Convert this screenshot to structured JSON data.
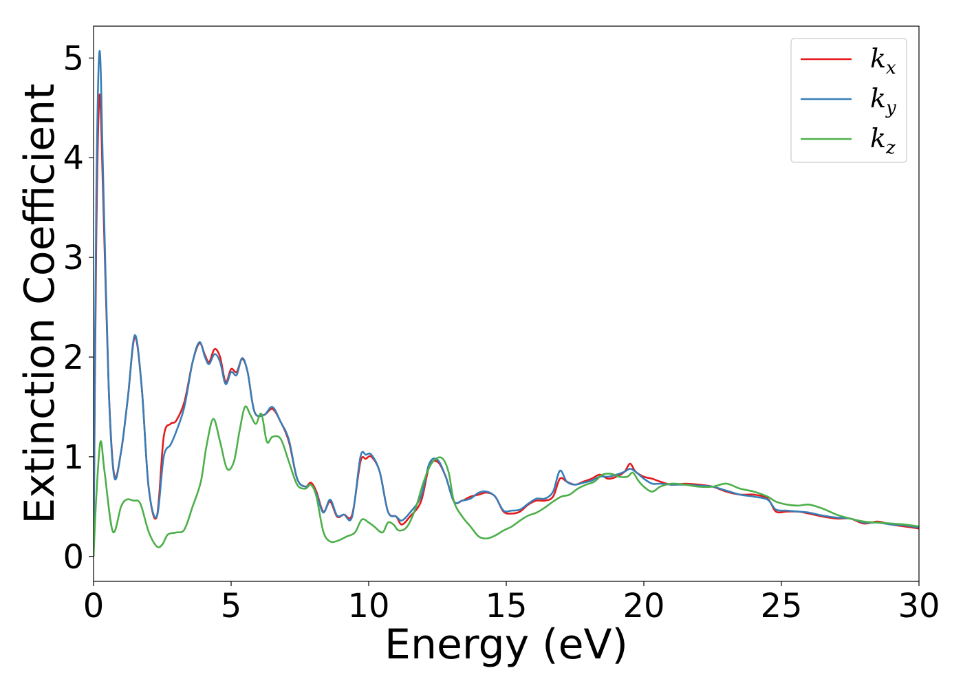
{
  "chart_data": {
    "type": "line",
    "xlabel": "Energy (eV)",
    "ylabel": "Extinction Coefficient",
    "xlim": [
      0,
      30
    ],
    "ylim": [
      -0.25,
      5.32
    ],
    "xticks": [
      "0",
      "5",
      "10",
      "15",
      "20",
      "25",
      "30"
    ],
    "yticks": [
      "0",
      "1",
      "2",
      "3",
      "4",
      "5"
    ],
    "grid": false,
    "legend_position": "top-right",
    "series": [
      {
        "name": "k",
        "subscript": "x",
        "color": "#e41a1c",
        "x": [
          0,
          0.1,
          0.22,
          0.35,
          0.55,
          0.75,
          1.0,
          1.25,
          1.5,
          1.75,
          2.0,
          2.3,
          2.55,
          2.8,
          3.0,
          3.3,
          3.6,
          3.85,
          4.05,
          4.2,
          4.4,
          4.6,
          4.8,
          5.0,
          5.2,
          5.4,
          5.6,
          5.85,
          6.2,
          6.5,
          6.8,
          7.1,
          7.4,
          7.7,
          7.9,
          8.1,
          8.35,
          8.6,
          8.85,
          9.1,
          9.4,
          9.7,
          9.9,
          10.1,
          10.4,
          10.7,
          11.0,
          11.2,
          11.5,
          11.9,
          12.2,
          12.5,
          12.8,
          13.1,
          13.4,
          13.7,
          14.0,
          14.3,
          14.6,
          14.9,
          15.2,
          15.5,
          15.8,
          16.1,
          16.4,
          16.7,
          16.95,
          17.2,
          17.5,
          17.8,
          18.1,
          18.4,
          18.7,
          19.0,
          19.3,
          19.5,
          19.7,
          20.0,
          20.3,
          20.6,
          21.0,
          21.5,
          22.0,
          22.5,
          23.0,
          23.5,
          24.0,
          24.5,
          24.8,
          25.2,
          25.6,
          26.0,
          26.5,
          27.0,
          27.5,
          28.0,
          28.5,
          29.0,
          29.5,
          30.0
        ],
        "y": [
          0.0,
          3.2,
          4.63,
          3.6,
          1.7,
          0.82,
          1.05,
          1.6,
          2.2,
          1.7,
          0.7,
          0.4,
          1.2,
          1.33,
          1.36,
          1.55,
          1.95,
          2.14,
          2.02,
          1.95,
          2.08,
          2.0,
          1.75,
          1.88,
          1.85,
          1.98,
          1.85,
          1.45,
          1.42,
          1.48,
          1.35,
          1.15,
          0.78,
          0.7,
          0.74,
          0.65,
          0.45,
          0.55,
          0.4,
          0.42,
          0.42,
          0.95,
          0.98,
          1.0,
          0.85,
          0.45,
          0.4,
          0.32,
          0.4,
          0.55,
          0.9,
          0.95,
          0.8,
          0.55,
          0.56,
          0.6,
          0.62,
          0.64,
          0.6,
          0.45,
          0.43,
          0.45,
          0.52,
          0.56,
          0.56,
          0.6,
          0.78,
          0.75,
          0.72,
          0.75,
          0.78,
          0.82,
          0.78,
          0.8,
          0.85,
          0.93,
          0.85,
          0.8,
          0.78,
          0.75,
          0.72,
          0.73,
          0.72,
          0.7,
          0.65,
          0.62,
          0.62,
          0.58,
          0.45,
          0.45,
          0.45,
          0.43,
          0.4,
          0.38,
          0.38,
          0.33,
          0.35,
          0.32,
          0.3,
          0.28
        ]
      },
      {
        "name": "k",
        "subscript": "y",
        "color": "#377eb8",
        "x": [
          0,
          0.1,
          0.22,
          0.35,
          0.55,
          0.75,
          1.0,
          1.25,
          1.5,
          1.75,
          2.0,
          2.3,
          2.55,
          2.8,
          3.0,
          3.3,
          3.6,
          3.85,
          4.05,
          4.2,
          4.4,
          4.6,
          4.8,
          5.0,
          5.2,
          5.4,
          5.6,
          5.85,
          6.2,
          6.5,
          6.8,
          7.1,
          7.4,
          7.7,
          7.9,
          8.1,
          8.35,
          8.6,
          8.85,
          9.1,
          9.4,
          9.7,
          9.9,
          10.1,
          10.4,
          10.7,
          11.0,
          11.2,
          11.5,
          11.9,
          12.2,
          12.5,
          12.8,
          13.1,
          13.4,
          13.7,
          14.0,
          14.3,
          14.6,
          14.9,
          15.2,
          15.5,
          15.8,
          16.1,
          16.4,
          16.7,
          16.95,
          17.2,
          17.5,
          17.8,
          18.1,
          18.4,
          18.7,
          19.0,
          19.3,
          19.5,
          19.7,
          20.0,
          20.3,
          20.6,
          21.0,
          21.5,
          22.0,
          22.5,
          23.0,
          23.5,
          24.0,
          24.5,
          24.8,
          25.2,
          25.6,
          26.0,
          26.5,
          27.0,
          27.5,
          28.0,
          28.5,
          29.0,
          29.5,
          30.0
        ],
        "y": [
          0.0,
          3.6,
          5.07,
          3.8,
          1.7,
          0.8,
          1.05,
          1.6,
          2.22,
          1.7,
          0.7,
          0.4,
          1.0,
          1.12,
          1.25,
          1.5,
          1.95,
          2.15,
          2.0,
          1.93,
          2.03,
          1.95,
          1.73,
          1.85,
          1.82,
          1.99,
          1.85,
          1.45,
          1.42,
          1.5,
          1.35,
          1.17,
          0.78,
          0.7,
          0.72,
          0.63,
          0.44,
          0.57,
          0.41,
          0.42,
          0.4,
          1.0,
          1.02,
          1.02,
          0.85,
          0.45,
          0.4,
          0.36,
          0.44,
          0.6,
          0.93,
          0.97,
          0.8,
          0.55,
          0.56,
          0.58,
          0.64,
          0.65,
          0.6,
          0.46,
          0.46,
          0.47,
          0.53,
          0.58,
          0.58,
          0.65,
          0.86,
          0.75,
          0.72,
          0.74,
          0.76,
          0.8,
          0.8,
          0.82,
          0.85,
          0.88,
          0.85,
          0.78,
          0.73,
          0.73,
          0.72,
          0.72,
          0.71,
          0.7,
          0.66,
          0.62,
          0.6,
          0.57,
          0.47,
          0.46,
          0.45,
          0.44,
          0.41,
          0.39,
          0.38,
          0.34,
          0.34,
          0.32,
          0.31,
          0.29
        ]
      },
      {
        "name": "k",
        "subscript": "z",
        "color": "#4daf4a",
        "x": [
          0,
          0.1,
          0.25,
          0.4,
          0.7,
          1.0,
          1.2,
          1.45,
          1.7,
          2.0,
          2.3,
          2.5,
          2.7,
          3.0,
          3.3,
          3.6,
          3.9,
          4.1,
          4.35,
          4.6,
          4.85,
          5.1,
          5.3,
          5.5,
          5.7,
          5.9,
          6.1,
          6.3,
          6.5,
          6.8,
          7.1,
          7.4,
          7.7,
          7.9,
          8.1,
          8.35,
          8.6,
          8.9,
          9.2,
          9.5,
          9.75,
          10.0,
          10.2,
          10.5,
          10.7,
          10.9,
          11.1,
          11.4,
          11.7,
          12.0,
          12.3,
          12.65,
          12.9,
          13.1,
          13.4,
          13.7,
          14.0,
          14.3,
          14.6,
          14.9,
          15.2,
          15.5,
          15.8,
          16.1,
          16.4,
          16.7,
          17.0,
          17.3,
          17.6,
          17.9,
          18.2,
          18.5,
          18.8,
          19.1,
          19.4,
          19.6,
          19.8,
          20.0,
          20.3,
          20.6,
          21.0,
          21.5,
          22.0,
          22.5,
          23.0,
          23.5,
          24.0,
          24.5,
          24.8,
          25.2,
          25.6,
          26.0,
          26.5,
          27.0,
          27.5,
          28.0,
          28.5,
          29.0,
          29.5,
          30.0
        ],
        "y": [
          0.0,
          0.6,
          1.15,
          0.85,
          0.25,
          0.5,
          0.57,
          0.56,
          0.53,
          0.25,
          0.1,
          0.12,
          0.22,
          0.24,
          0.27,
          0.5,
          0.75,
          1.1,
          1.38,
          1.15,
          0.88,
          0.95,
          1.25,
          1.5,
          1.42,
          1.33,
          1.43,
          1.15,
          1.2,
          1.18,
          0.95,
          0.72,
          0.68,
          0.72,
          0.6,
          0.25,
          0.15,
          0.16,
          0.2,
          0.24,
          0.37,
          0.34,
          0.3,
          0.24,
          0.34,
          0.32,
          0.26,
          0.3,
          0.48,
          0.75,
          0.94,
          0.99,
          0.85,
          0.55,
          0.4,
          0.3,
          0.2,
          0.18,
          0.21,
          0.26,
          0.3,
          0.36,
          0.41,
          0.44,
          0.49,
          0.55,
          0.6,
          0.62,
          0.68,
          0.72,
          0.75,
          0.82,
          0.83,
          0.8,
          0.8,
          0.84,
          0.76,
          0.7,
          0.65,
          0.7,
          0.73,
          0.72,
          0.7,
          0.7,
          0.73,
          0.68,
          0.65,
          0.6,
          0.55,
          0.52,
          0.51,
          0.52,
          0.48,
          0.42,
          0.38,
          0.35,
          0.34,
          0.33,
          0.32,
          0.3
        ]
      }
    ]
  }
}
